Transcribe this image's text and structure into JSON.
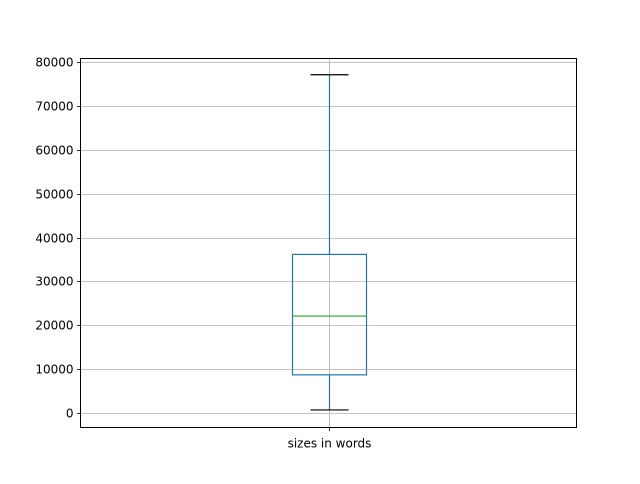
{
  "chart_data": {
    "type": "box",
    "categories": [
      "sizes in words"
    ],
    "boxes": [
      {
        "label": "sizes in words",
        "whisker_low": 700,
        "q1": 8700,
        "median": 22100,
        "q3": 36150,
        "whisker_high": 77100
      }
    ],
    "ylim": [
      -3300,
      80800
    ],
    "yticks": [
      0,
      10000,
      20000,
      30000,
      40000,
      50000,
      60000,
      70000,
      80000
    ],
    "ytick_labels": [
      "0",
      "10000",
      "20000",
      "30000",
      "40000",
      "50000",
      "60000",
      "70000",
      "80000"
    ],
    "grid": true,
    "xlabel": "",
    "ylabel": "",
    "title": "",
    "colors": {
      "box": "#1f77b4",
      "median": "#2ca02c",
      "cap": "#000000",
      "grid": "#b0b0b0"
    }
  }
}
